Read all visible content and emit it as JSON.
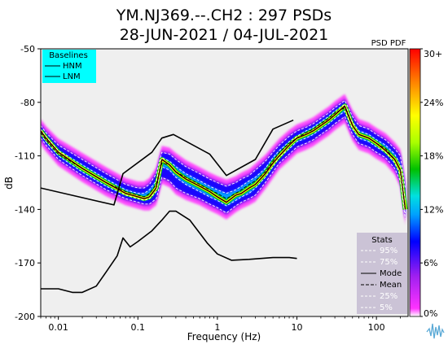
{
  "title_line1": "YM.NJ369.--.CH2 : 297 PSDs",
  "title_line2": "28-JUN-2021 / 04-JUL-2021",
  "colorbar_title": "PSD PDF",
  "legend_title": "Baselines",
  "legend_items": [
    "HNM",
    "LNM"
  ],
  "stats_title": "Stats",
  "stats_items": [
    "95%",
    "75%",
    "Mode",
    "Mean",
    "25%",
    "5%"
  ],
  "chart_data": {
    "type": "heatmap",
    "xlabel": "Frequency (Hz)",
    "ylabel": "dB",
    "xscale": "log",
    "xlim": [
      0.006,
      250
    ],
    "ylim": [
      -200,
      -50
    ],
    "xticks": [
      {
        "value": 0.01,
        "label": "0.01"
      },
      {
        "value": 0.1,
        "label": "0.1"
      },
      {
        "value": 1,
        "label": "1"
      },
      {
        "value": 10,
        "label": "10"
      },
      {
        "value": 100,
        "label": "100"
      }
    ],
    "yticks": [
      {
        "value": -50,
        "label": "-50"
      },
      {
        "value": -80,
        "label": "-80"
      },
      {
        "value": -110,
        "label": "-110"
      },
      {
        "value": -140,
        "label": "-140"
      },
      {
        "value": -170,
        "label": "-170"
      },
      {
        "value": -200,
        "label": "-200"
      }
    ],
    "colorbar": {
      "label": "PSD PDF",
      "ticks": [
        {
          "value": 0,
          "label": "0%"
        },
        {
          "value": 6,
          "label": "6%"
        },
        {
          "value": 12,
          "label": "12%"
        },
        {
          "value": 18,
          "label": "18%"
        },
        {
          "value": 24,
          "label": "24%"
        },
        {
          "value": 30,
          "label": "30+"
        }
      ],
      "colors": [
        "#ffffff",
        "#ff33ff",
        "#8a2be2",
        "#0000ff",
        "#00bfff",
        "#00e0e0",
        "#00c000",
        "#aaff00",
        "#ffff00",
        "#ff8800",
        "#ff0000"
      ]
    },
    "series": [
      {
        "name": "HNM",
        "x": [
          0.006,
          0.05,
          0.065,
          0.15,
          0.2,
          0.28,
          0.8,
          1.3,
          3.0,
          5.0,
          9.0
        ],
        "y": [
          -128,
          -137.5,
          -120,
          -108,
          -100,
          -98,
          -109,
          -121,
          -112,
          -95,
          -90
        ]
      },
      {
        "name": "LNM",
        "x": [
          0.006,
          0.01,
          0.015,
          0.02,
          0.03,
          0.04,
          0.055,
          0.065,
          0.08,
          0.1,
          0.15,
          0.2,
          0.25,
          0.3,
          0.45,
          0.75,
          1.0,
          1.5,
          2.5,
          5.0,
          8.0,
          10.0
        ],
        "y": [
          -184.5,
          -184.5,
          -186.5,
          -186.5,
          -183,
          -175,
          -166,
          -156,
          -161,
          -158,
          -152,
          -146,
          -141,
          -141,
          -146,
          -159,
          -165,
          -168.5,
          -168,
          -167,
          -167,
          -167.5
        ]
      },
      {
        "name": "Mode",
        "x": [
          0.006,
          0.007,
          0.01,
          0.02,
          0.04,
          0.07,
          0.1,
          0.12,
          0.14,
          0.17,
          0.2,
          0.25,
          0.3,
          0.4,
          0.6,
          0.8,
          1.0,
          1.3,
          1.7,
          2.0,
          2.5,
          3.0,
          4.0,
          5.0,
          6.0,
          8.0,
          10.0,
          13.0,
          16.0,
          20.0,
          25.0,
          30.0,
          40.0,
          50.0,
          60.0,
          80.0,
          100.0,
          130.0,
          170.0,
          200.0,
          230.0
        ],
        "y": [
          -96,
          -100,
          -108,
          -117,
          -125,
          -131,
          -133,
          -134,
          -133,
          -128,
          -112,
          -115,
          -119,
          -123,
          -127,
          -130,
          -133,
          -136,
          -132,
          -131,
          -128,
          -126,
          -120,
          -114,
          -110,
          -104,
          -100,
          -98,
          -96,
          -93,
          -90,
          -87,
          -82,
          -93,
          -98,
          -100,
          -103,
          -107,
          -112,
          -118,
          -140
        ]
      },
      {
        "name": "Mean",
        "x": [
          0.006,
          0.007,
          0.01,
          0.02,
          0.04,
          0.07,
          0.1,
          0.12,
          0.14,
          0.17,
          0.2,
          0.25,
          0.3,
          0.4,
          0.6,
          0.8,
          1.0,
          1.3,
          1.7,
          2.0,
          2.5,
          3.0,
          4.0,
          5.0,
          6.0,
          8.0,
          10.0,
          13.0,
          16.0,
          20.0,
          25.0,
          30.0,
          40.0,
          50.0,
          60.0,
          80.0,
          100.0,
          130.0,
          170.0,
          200.0,
          230.0
        ],
        "y": [
          -97,
          -101,
          -109,
          -117,
          -125,
          -130,
          -132,
          -133,
          -131,
          -126,
          -114,
          -115,
          -119,
          -122,
          -126,
          -129,
          -131,
          -134,
          -131,
          -129,
          -126,
          -124,
          -119,
          -113,
          -108,
          -103,
          -100,
          -97,
          -95,
          -92,
          -89,
          -86,
          -83,
          -93,
          -98,
          -100,
          -103,
          -106,
          -112,
          -118,
          -140
        ]
      },
      {
        "name": "95%",
        "x": [
          0.006,
          0.007,
          0.01,
          0.02,
          0.04,
          0.07,
          0.1,
          0.12,
          0.14,
          0.17,
          0.2,
          0.25,
          0.3,
          0.4,
          0.6,
          0.8,
          1.0,
          1.3,
          1.7,
          2.0,
          2.5,
          3.0,
          4.0,
          5.0,
          6.0,
          8.0,
          10.0,
          13.0,
          16.0,
          20.0,
          25.0,
          30.0,
          40.0,
          50.0,
          60.0,
          80.0,
          100.0,
          130.0,
          170.0,
          200.0,
          230.0
        ],
        "y": [
          -93,
          -97,
          -104,
          -112,
          -120,
          -126,
          -128,
          -128,
          -126,
          -120,
          -108,
          -109,
          -112,
          -116,
          -120,
          -123,
          -125,
          -127,
          -125,
          -123,
          -121,
          -118,
          -113,
          -108,
          -104,
          -99,
          -96,
          -94,
          -92,
          -89,
          -86,
          -83,
          -79,
          -88,
          -93,
          -95,
          -98,
          -101,
          -106,
          -110,
          -128
        ]
      },
      {
        "name": "75%",
        "x": [
          0.006,
          0.007,
          0.01,
          0.02,
          0.04,
          0.07,
          0.1,
          0.12,
          0.14,
          0.17,
          0.2,
          0.25,
          0.3,
          0.4,
          0.6,
          0.8,
          1.0,
          1.3,
          1.7,
          2.0,
          2.5,
          3.0,
          4.0,
          5.0,
          6.0,
          8.0,
          10.0,
          13.0,
          16.0,
          20.0,
          25.0,
          30.0,
          40.0,
          50.0,
          60.0,
          80.0,
          100.0,
          130.0,
          170.0,
          200.0,
          230.0
        ],
        "y": [
          -95,
          -99,
          -107,
          -115,
          -123,
          -129,
          -131,
          -131,
          -129,
          -124,
          -111,
          -113,
          -116,
          -120,
          -124,
          -127,
          -129,
          -131,
          -129,
          -127,
          -124,
          -122,
          -117,
          -111,
          -107,
          -102,
          -99,
          -96,
          -94,
          -91,
          -88,
          -85,
          -81,
          -91,
          -96,
          -98,
          -101,
          -104,
          -109,
          -115,
          -135
        ]
      },
      {
        "name": "25%",
        "x": [
          0.006,
          0.007,
          0.01,
          0.02,
          0.04,
          0.07,
          0.1,
          0.12,
          0.14,
          0.17,
          0.2,
          0.25,
          0.3,
          0.4,
          0.6,
          0.8,
          1.0,
          1.3,
          1.7,
          2.0,
          2.5,
          3.0,
          4.0,
          5.0,
          6.0,
          8.0,
          10.0,
          13.0,
          16.0,
          20.0,
          25.0,
          30.0,
          40.0,
          50.0,
          60.0,
          80.0,
          100.0,
          130.0,
          170.0,
          200.0,
          230.0
        ],
        "y": [
          -98,
          -102,
          -110,
          -119,
          -127,
          -132,
          -134,
          -135,
          -134,
          -130,
          -116,
          -118,
          -122,
          -126,
          -130,
          -133,
          -135,
          -138,
          -135,
          -133,
          -131,
          -128,
          -122,
          -116,
          -111,
          -106,
          -102,
          -100,
          -98,
          -95,
          -92,
          -89,
          -85,
          -95,
          -100,
          -102,
          -105,
          -108,
          -114,
          -121,
          -142
        ]
      },
      {
        "name": "5%",
        "x": [
          0.006,
          0.007,
          0.01,
          0.02,
          0.04,
          0.07,
          0.1,
          0.12,
          0.14,
          0.17,
          0.2,
          0.25,
          0.3,
          0.4,
          0.6,
          0.8,
          1.0,
          1.3,
          1.7,
          2.0,
          2.5,
          3.0,
          4.0,
          5.0,
          6.0,
          8.0,
          10.0,
          13.0,
          16.0,
          20.0,
          25.0,
          30.0,
          40.0,
          50.0,
          60.0,
          80.0,
          100.0,
          130.0,
          170.0,
          200.0,
          230.0
        ],
        "y": [
          -100,
          -104,
          -112,
          -121,
          -129,
          -134,
          -136,
          -137,
          -137,
          -134,
          -122,
          -124,
          -128,
          -131,
          -134,
          -137,
          -139,
          -142,
          -138,
          -136,
          -134,
          -132,
          -125,
          -119,
          -114,
          -109,
          -105,
          -103,
          -101,
          -98,
          -95,
          -92,
          -88,
          -98,
          -103,
          -105,
          -108,
          -111,
          -117,
          -124,
          -145
        ]
      }
    ]
  }
}
